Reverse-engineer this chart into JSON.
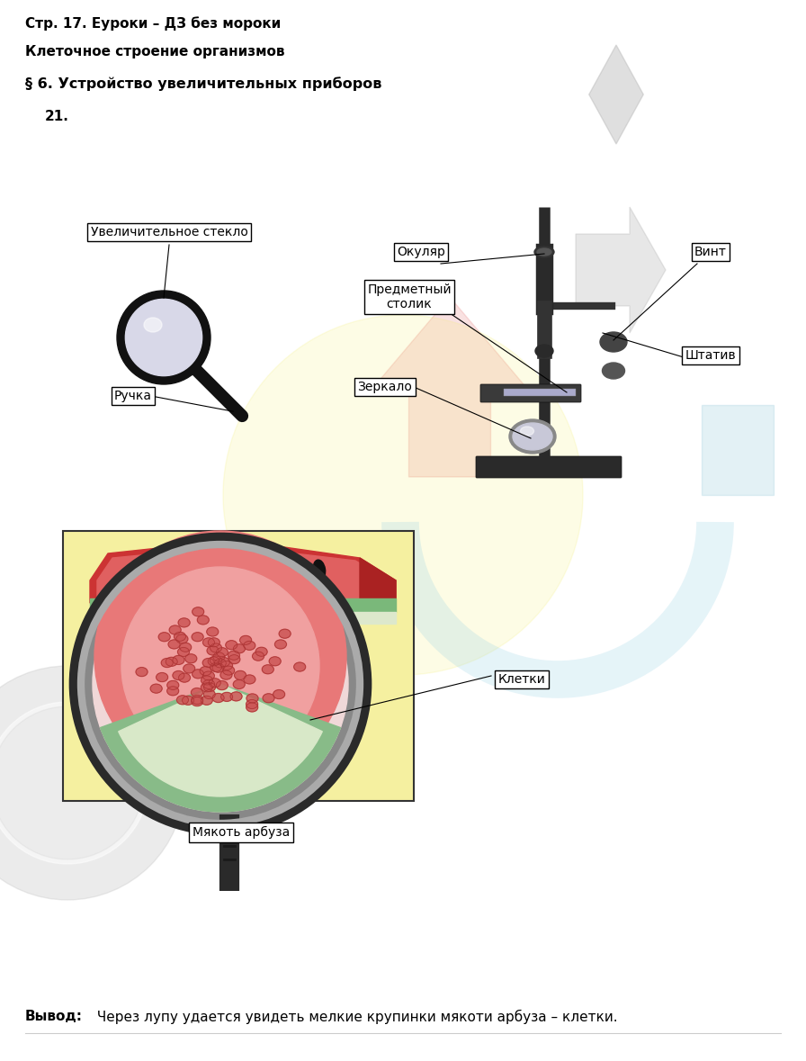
{
  "title1": "Стр. 17. Еуроки – ДЗ без мороки",
  "title2": "Клеточное строение организмов",
  "title3": "§ 6. Устройство увеличительных приборов",
  "number": "21.",
  "conclusion_bold": "Вывод:",
  "conclusion_text": " Через лупу удается увидеть мелкие крупинки мякоти арбуза – клетки.",
  "bg_color": "#ffffff",
  "label_bg": "#ffffff",
  "label_border": "#000000",
  "text_color": "#000000",
  "fig_w": 8.96,
  "fig_h": 11.79,
  "dpi": 100
}
